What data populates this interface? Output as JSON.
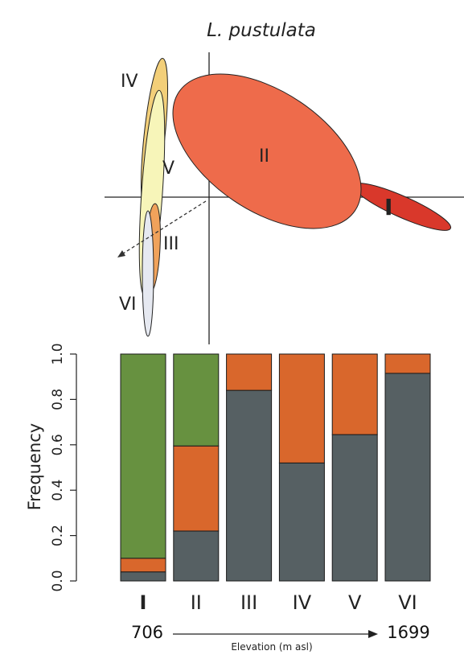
{
  "title": "L. pustulata",
  "colors": {
    "I": "#d9382b",
    "II": "#ee6b4b",
    "III": "#f0a25b",
    "IV": "#f3cf79",
    "V": "#f7f5b9",
    "VI": "#e6e9f1",
    "green": "#679140",
    "orange": "#d9672c",
    "gray": "#566063"
  },
  "ordination": {
    "labels": [
      "I",
      "II",
      "III",
      "IV",
      "V",
      "VI"
    ]
  },
  "chart_data": {
    "type": "bar",
    "stacked": true,
    "categories": [
      "I",
      "II",
      "III",
      "IV",
      "V",
      "VI"
    ],
    "series": [
      {
        "values": [
          0.04,
          0.22,
          0.84,
          0.52,
          0.645,
          0.915
        ]
      },
      {
        "values": [
          0.06,
          0.375,
          0.16,
          0.48,
          0.355,
          0.085
        ]
      },
      {
        "values": [
          0.9,
          0.405,
          0.0,
          0.0,
          0.0,
          0.0
        ]
      }
    ],
    "series_colors": [
      "#566063",
      "#d9672c",
      "#679140"
    ],
    "ylabel": "Frequency",
    "ylim": [
      0,
      1.0
    ],
    "yticks": [
      "0.0",
      "0.2",
      "0.4",
      "0.6",
      "0.8",
      "1.0"
    ],
    "elevation": {
      "low": "706",
      "high": "1699",
      "label": "Elevation (m asl)"
    }
  }
}
